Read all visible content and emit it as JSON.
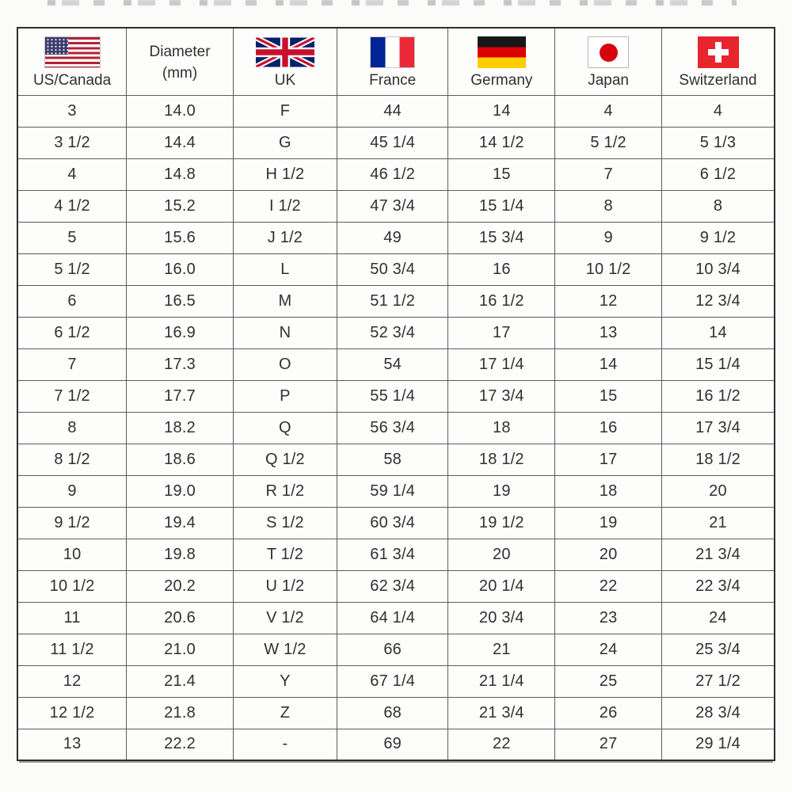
{
  "chart_data": {
    "type": "table",
    "columns": [
      {
        "label": "US/Canada",
        "flag": "us-flag-icon"
      },
      {
        "label": "Diameter",
        "sublabel": "(mm)"
      },
      {
        "label": "UK",
        "flag": "uk-flag-icon"
      },
      {
        "label": "France",
        "flag": "france-flag-icon"
      },
      {
        "label": "Germany",
        "flag": "germany-flag-icon"
      },
      {
        "label": "Japan",
        "flag": "japan-flag-icon"
      },
      {
        "label": "Switzerland",
        "flag": "switzerland-flag-icon"
      }
    ],
    "rows": [
      [
        "3",
        "14.0",
        "F",
        "44",
        "14",
        "4",
        "4"
      ],
      [
        "3 1/2",
        "14.4",
        "G",
        "45 1/4",
        "14 1/2",
        "5 1/2",
        "5 1/3"
      ],
      [
        "4",
        "14.8",
        "H 1/2",
        "46 1/2",
        "15",
        "7",
        "6 1/2"
      ],
      [
        "4 1/2",
        "15.2",
        "I 1/2",
        "47 3/4",
        "15 1/4",
        "8",
        "8"
      ],
      [
        "5",
        "15.6",
        "J 1/2",
        "49",
        "15 3/4",
        "9",
        "9 1/2"
      ],
      [
        "5 1/2",
        "16.0",
        "L",
        "50 3/4",
        "16",
        "10 1/2",
        "10 3/4"
      ],
      [
        "6",
        "16.5",
        "M",
        "51 1/2",
        "16 1/2",
        "12",
        "12 3/4"
      ],
      [
        "6 1/2",
        "16.9",
        "N",
        "52 3/4",
        "17",
        "13",
        "14"
      ],
      [
        "7",
        "17.3",
        "O",
        "54",
        "17 1/4",
        "14",
        "15 1/4"
      ],
      [
        "7 1/2",
        "17.7",
        "P",
        "55 1/4",
        "17 3/4",
        "15",
        "16 1/2"
      ],
      [
        "8",
        "18.2",
        "Q",
        "56 3/4",
        "18",
        "16",
        "17 3/4"
      ],
      [
        "8 1/2",
        "18.6",
        "Q 1/2",
        "58",
        "18 1/2",
        "17",
        "18 1/2"
      ],
      [
        "9",
        "19.0",
        "R 1/2",
        "59 1/4",
        "19",
        "18",
        "20"
      ],
      [
        "9 1/2",
        "19.4",
        "S 1/2",
        "60 3/4",
        "19 1/2",
        "19",
        "21"
      ],
      [
        "10",
        "19.8",
        "T 1/2",
        "61 3/4",
        "20",
        "20",
        "21 3/4"
      ],
      [
        "10 1/2",
        "20.2",
        "U 1/2",
        "62 3/4",
        "20 1/4",
        "22",
        "22 3/4"
      ],
      [
        "11",
        "20.6",
        "V 1/2",
        "64 1/4",
        "20 3/4",
        "23",
        "24"
      ],
      [
        "11 1/2",
        "21.0",
        "W 1/2",
        "66",
        "21",
        "24",
        "25 3/4"
      ],
      [
        "12",
        "21.4",
        "Y",
        "67 1/4",
        "21 1/4",
        "25",
        "27 1/2"
      ],
      [
        "12 1/2",
        "21.8",
        "Z",
        "68",
        "21 3/4",
        "26",
        "28 3/4"
      ],
      [
        "13",
        "22.2",
        "-",
        "69",
        "22",
        "27",
        "29 1/4"
      ]
    ],
    "colors": {
      "table_background": "#fdfdfc",
      "grid_line": "#5d5d5d",
      "outer_border": "#2e2e2e",
      "text": "#303030"
    },
    "layout": {
      "grid": true,
      "header_flags": true
    }
  }
}
